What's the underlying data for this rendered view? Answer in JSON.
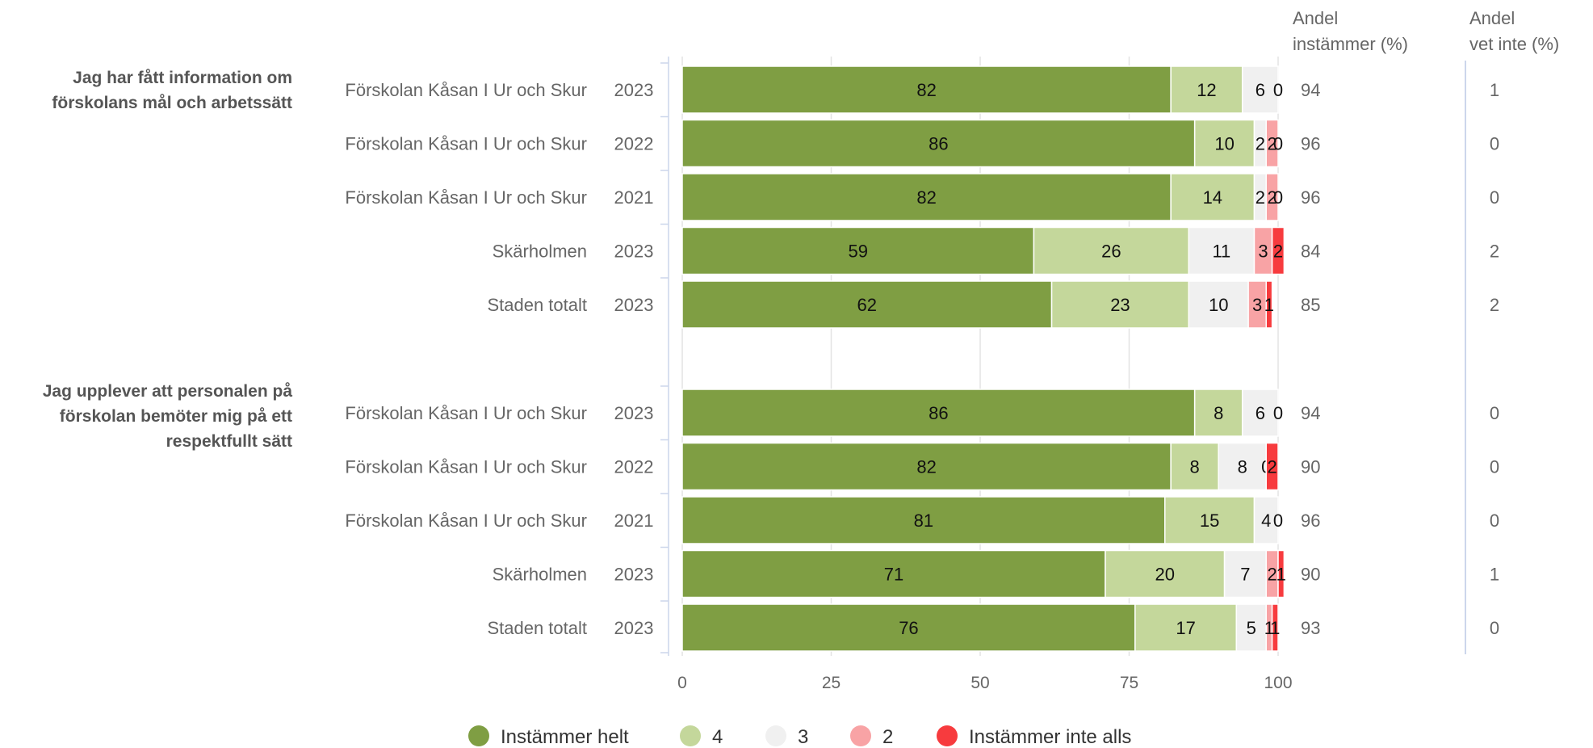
{
  "chart_data": {
    "type": "bar",
    "orientation": "horizontal",
    "stacked": true,
    "xlim": [
      0,
      100
    ],
    "xticks": [
      "0",
      "25",
      "50",
      "75",
      "100"
    ],
    "grid": true,
    "legend_position": "bottom-center",
    "series": [
      {
        "name": "Instämmer helt",
        "color": "#7f9e43"
      },
      {
        "name": "4",
        "color": "#c4d79b"
      },
      {
        "name": "3",
        "color": "#f0f0f0"
      },
      {
        "name": "2",
        "color": "#f8a3a5"
      },
      {
        "name": "Instämmer inte alls",
        "color": "#f73b3e"
      }
    ],
    "extra_columns": [
      {
        "header_line1": "Andel",
        "header_line2": "instämmer (%)"
      },
      {
        "header_line1": "Andel",
        "header_line2": "vet inte (%)"
      }
    ],
    "groups": [
      {
        "question_lines": [
          "Jag har fått information om",
          "förskolans mål och arbetssätt"
        ],
        "rows": [
          {
            "unit": "Förskolan Kåsan I Ur och Skur",
            "year": "2023",
            "values": [
              82,
              12,
              6,
              0,
              0
            ],
            "labels": [
              "82",
              "12",
              "6",
              "0",
              ""
            ],
            "agree": "94",
            "dont_know": "1"
          },
          {
            "unit": "Förskolan Kåsan I Ur och Skur",
            "year": "2022",
            "values": [
              86,
              10,
              2,
              2,
              0
            ],
            "labels": [
              "86",
              "10",
              "2",
              "2",
              "0"
            ],
            "agree": "96",
            "dont_know": "0"
          },
          {
            "unit": "Förskolan Kåsan I Ur och Skur",
            "year": "2021",
            "values": [
              82,
              14,
              2,
              2,
              0
            ],
            "labels": [
              "82",
              "14",
              "2",
              "2",
              "0"
            ],
            "agree": "96",
            "dont_know": "0"
          },
          {
            "unit": "Skärholmen",
            "year": "2023",
            "values": [
              59,
              26,
              11,
              3,
              2
            ],
            "labels": [
              "59",
              "26",
              "11",
              "3",
              "2"
            ],
            "agree": "84",
            "dont_know": "2"
          },
          {
            "unit": "Staden totalt",
            "year": "2023",
            "values": [
              62,
              23,
              10,
              3,
              1
            ],
            "labels": [
              "62",
              "23",
              "10",
              "3",
              "1"
            ],
            "agree": "85",
            "dont_know": "2"
          }
        ]
      },
      {
        "question_lines": [
          "Jag upplever att personalen på",
          "förskolan bemöter mig på ett",
          "respektfullt sätt"
        ],
        "rows": [
          {
            "unit": "Förskolan Kåsan I Ur och Skur",
            "year": "2023",
            "values": [
              86,
              8,
              6,
              0,
              0
            ],
            "labels": [
              "86",
              "8",
              "6",
              "0",
              ""
            ],
            "agree": "94",
            "dont_know": "0"
          },
          {
            "unit": "Förskolan Kåsan I Ur och Skur",
            "year": "2022",
            "values": [
              82,
              8,
              8,
              0,
              2
            ],
            "labels": [
              "82",
              "8",
              "8",
              "0",
              "2"
            ],
            "agree": "90",
            "dont_know": "0"
          },
          {
            "unit": "Förskolan Kåsan I Ur och Skur",
            "year": "2021",
            "values": [
              81,
              15,
              4,
              0,
              0
            ],
            "labels": [
              "81",
              "15",
              "4",
              "0",
              ""
            ],
            "agree": "96",
            "dont_know": "0"
          },
          {
            "unit": "Skärholmen",
            "year": "2023",
            "values": [
              71,
              20,
              7,
              2,
              1
            ],
            "labels": [
              "71",
              "20",
              "7",
              "2",
              "1"
            ],
            "agree": "90",
            "dont_know": "1"
          },
          {
            "unit": "Staden totalt",
            "year": "2023",
            "values": [
              76,
              17,
              5,
              1,
              1
            ],
            "labels": [
              "76",
              "17",
              "5",
              "1",
              "1"
            ],
            "agree": "93",
            "dont_know": "0"
          }
        ]
      }
    ]
  }
}
